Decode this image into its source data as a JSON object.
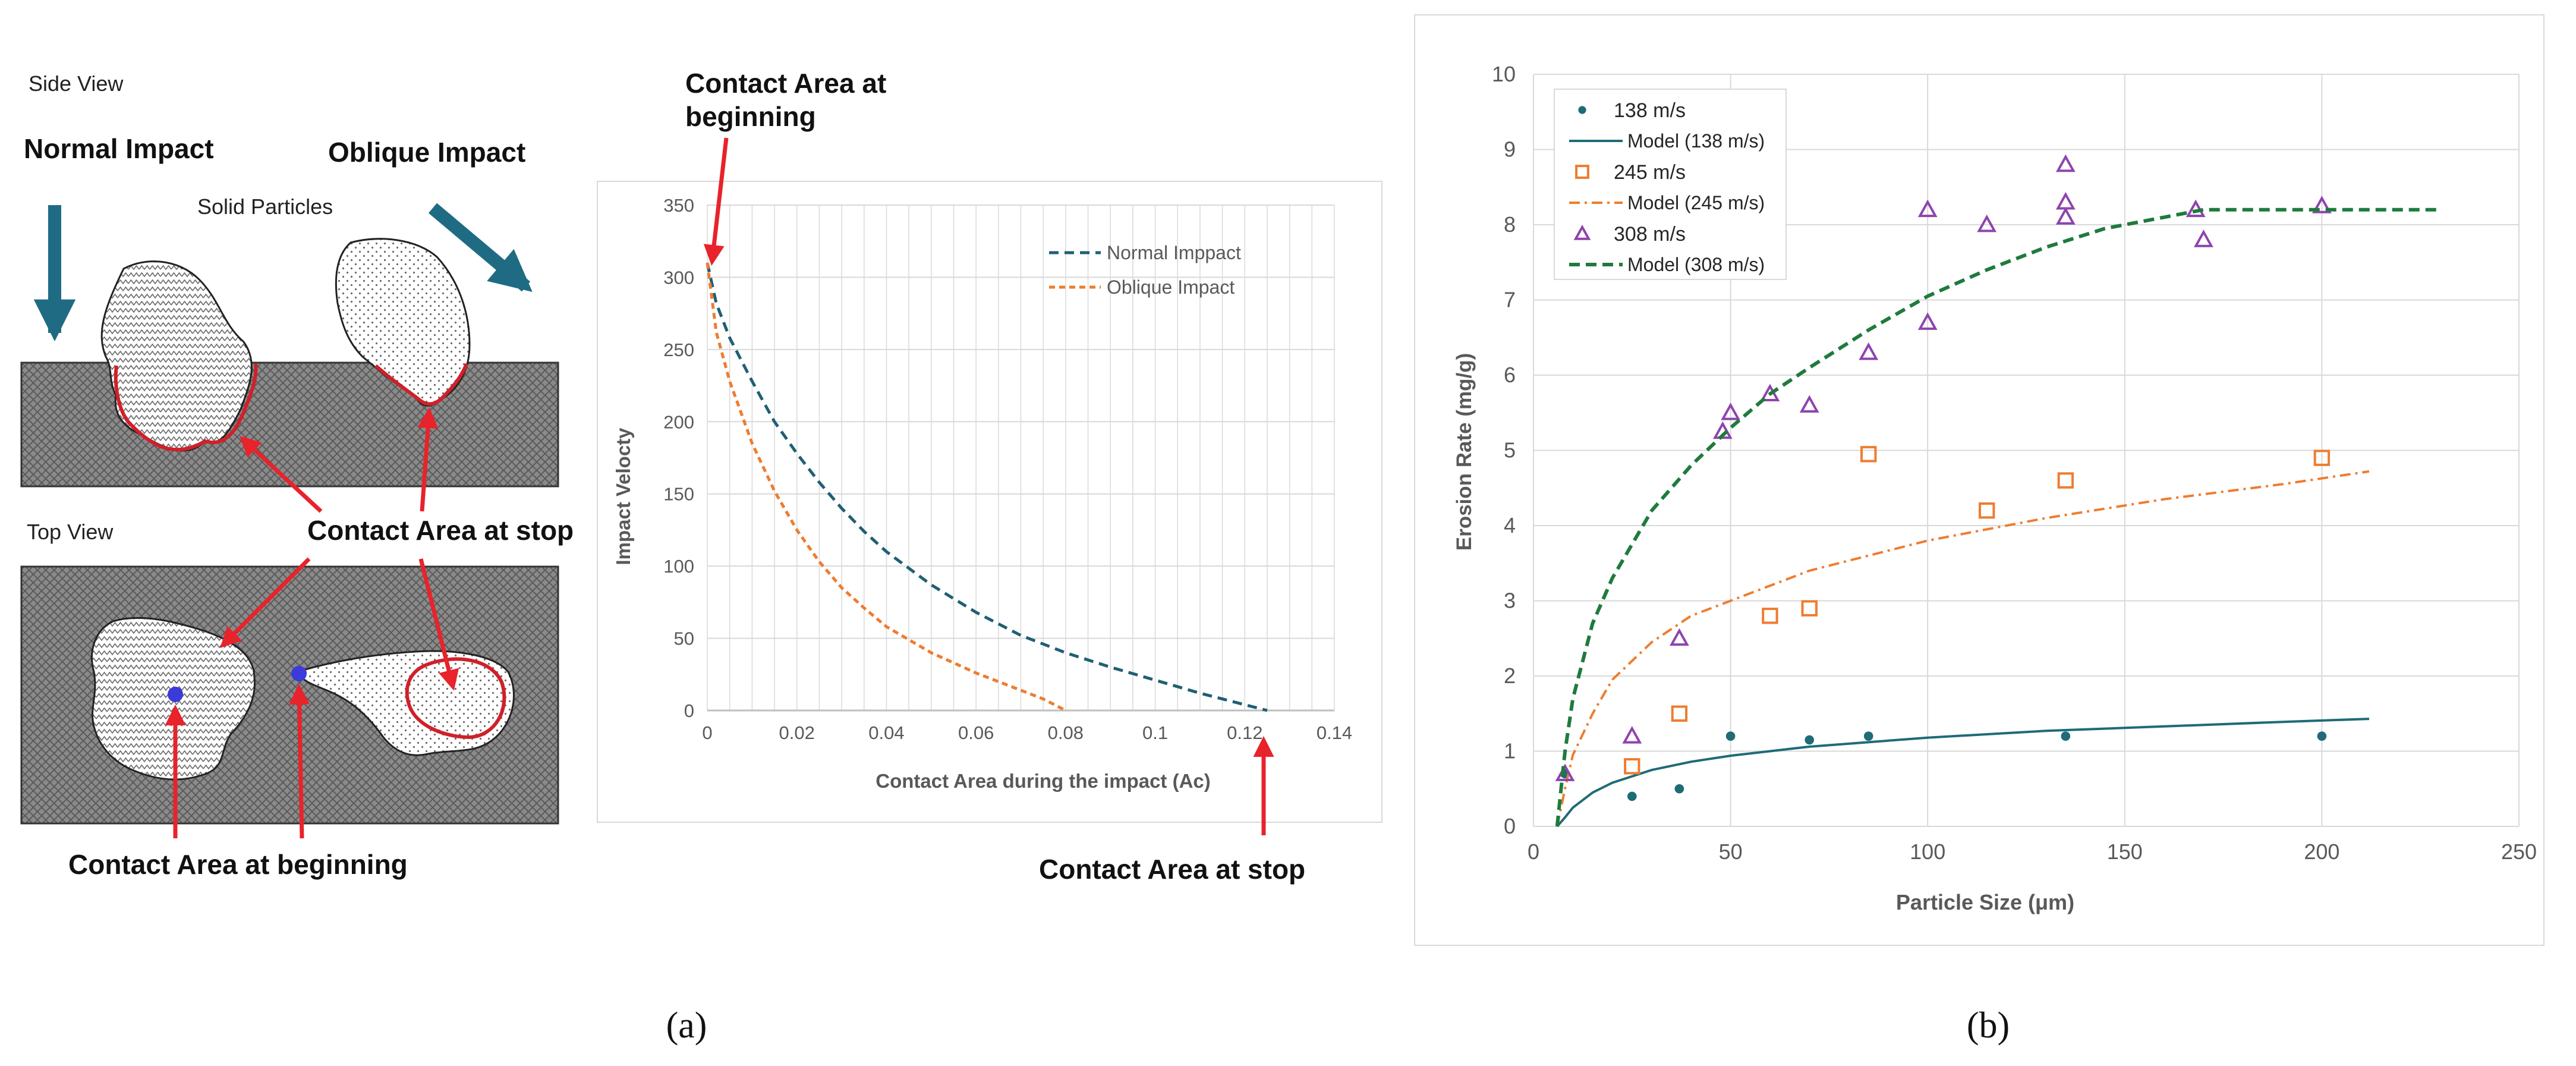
{
  "colors": {
    "normal": "#1f5f73",
    "oblique": "#ed7d31",
    "v138": "#1f6b78",
    "v245": "#ed7d31",
    "v308": "#8e44ad",
    "model308": "#1e7b3c",
    "arrow_red": "#e8232b",
    "arrow_blue": "#1f6b84",
    "grid": "#d9d9d9"
  },
  "captions": {
    "a": "(a)",
    "b": "(b)"
  },
  "diagram": {
    "side_view": "Side View",
    "normal_impact": "Normal Impact",
    "oblique_impact": "Oblique Impact",
    "solid_particles": "Solid Particles",
    "contact_area_stop": "Contact Area at stop",
    "top_view": "Top View",
    "contact_area_beginning": "Contact Area at beginning"
  },
  "chart_a_annotations": {
    "begin_line1": "Contact Area at",
    "begin_line2": "beginning",
    "stop": "Contact Area at stop"
  },
  "chart_data": [
    {
      "type": "line",
      "title": "",
      "xlabel": "Contact Area during the impact (Ac)",
      "ylabel": "Impact Velocty",
      "xlim": [
        0,
        0.14
      ],
      "ylim": [
        0,
        350
      ],
      "xticks": [
        0,
        0.02,
        0.04,
        0.06,
        0.08,
        0.1,
        0.12,
        0.14
      ],
      "xtick_labels": [
        "0",
        "0.02",
        "0.04",
        "0.06",
        "0.08",
        "0.1",
        "0.12",
        "0.14"
      ],
      "yticks": [
        0,
        50,
        100,
        150,
        200,
        250,
        300,
        350
      ],
      "ytick_labels": [
        "0",
        "50",
        "100",
        "150",
        "200",
        "250",
        "300",
        "350"
      ],
      "legend": "top-right",
      "series": [
        {
          "name": "Normal Imppact",
          "style": "dashed",
          "x": [
            0,
            0.002,
            0.005,
            0.01,
            0.015,
            0.02,
            0.025,
            0.03,
            0.035,
            0.04,
            0.05,
            0.06,
            0.07,
            0.08,
            0.09,
            0.1,
            0.11,
            0.12,
            0.125
          ],
          "y": [
            310,
            282,
            258,
            228,
            200,
            178,
            158,
            140,
            124,
            110,
            87,
            68,
            52,
            40,
            30,
            21,
            12,
            4,
            0
          ]
        },
        {
          "name": "Oblique Impact",
          "style": "dashed",
          "x": [
            0,
            0.002,
            0.005,
            0.01,
            0.015,
            0.02,
            0.025,
            0.03,
            0.035,
            0.04,
            0.05,
            0.06,
            0.07,
            0.075,
            0.08
          ],
          "y": [
            310,
            262,
            228,
            185,
            152,
            125,
            103,
            85,
            71,
            58,
            40,
            26,
            14,
            8,
            0
          ]
        }
      ]
    },
    {
      "type": "scatter",
      "title": "",
      "xlabel": "Particle Size (μm)",
      "ylabel": "Erosion Rate (mg/g)",
      "xlim": [
        0,
        250
      ],
      "ylim": [
        0,
        10
      ],
      "xticks": [
        0,
        50,
        100,
        150,
        200,
        250
      ],
      "xtick_labels": [
        "0",
        "50",
        "100",
        "150",
        "200",
        "250"
      ],
      "yticks": [
        0,
        1,
        2,
        3,
        4,
        5,
        6,
        7,
        8,
        9,
        10
      ],
      "ytick_labels": [
        "0",
        "1",
        "2",
        "3",
        "4",
        "5",
        "6",
        "7",
        "8",
        "9",
        "10"
      ],
      "legend": "top-left",
      "series": [
        {
          "name": "138 m/s",
          "kind": "points",
          "marker": "dot",
          "x": [
            8,
            25,
            37,
            50,
            70,
            85,
            135,
            200
          ],
          "y": [
            0.7,
            0.4,
            0.5,
            1.2,
            1.15,
            1.2,
            1.2,
            1.2
          ]
        },
        {
          "name": "Model (138 m/s)",
          "kind": "line",
          "style": "solid",
          "x": [
            6,
            8,
            10,
            15,
            20,
            30,
            40,
            50,
            70,
            100,
            130,
            160,
            190,
            212
          ],
          "y": [
            0,
            0.12,
            0.25,
            0.45,
            0.58,
            0.75,
            0.86,
            0.94,
            1.06,
            1.18,
            1.27,
            1.33,
            1.39,
            1.43
          ]
        },
        {
          "name": "245 m/s",
          "kind": "points",
          "marker": "square",
          "x": [
            25,
            37,
            60,
            70,
            85,
            115,
            135,
            200
          ],
          "y": [
            0.8,
            1.5,
            2.8,
            2.9,
            4.95,
            4.2,
            4.6,
            4.9
          ]
        },
        {
          "name": "Model (245 m/s)",
          "kind": "line",
          "style": "dashdot",
          "x": [
            6,
            8,
            10,
            15,
            20,
            30,
            40,
            50,
            70,
            100,
            130,
            160,
            190,
            212
          ],
          "y": [
            0,
            0.5,
            0.95,
            1.5,
            1.95,
            2.45,
            2.8,
            3.0,
            3.4,
            3.8,
            4.1,
            4.35,
            4.55,
            4.72
          ]
        },
        {
          "name": "308 m/s",
          "kind": "points",
          "marker": "triangle",
          "x": [
            8,
            25,
            37,
            48,
            50,
            60,
            70,
            85,
            100,
            100,
            115,
            135,
            135,
            135,
            168,
            170,
            200
          ],
          "y": [
            0.7,
            1.2,
            2.5,
            5.25,
            5.5,
            5.75,
            5.6,
            6.3,
            6.7,
            8.2,
            8.0,
            8.8,
            8.3,
            8.1,
            8.2,
            7.8,
            8.25
          ]
        },
        {
          "name": "Model (308 m/s)",
          "kind": "line",
          "style": "dashed",
          "x": [
            6,
            8,
            10,
            15,
            20,
            25,
            30,
            40,
            50,
            60,
            70,
            85,
            100,
            115,
            130,
            145,
            160,
            170,
            200,
            230
          ],
          "y": [
            0,
            1.0,
            1.7,
            2.7,
            3.3,
            3.75,
            4.2,
            4.8,
            5.3,
            5.75,
            6.1,
            6.6,
            7.05,
            7.4,
            7.7,
            7.95,
            8.1,
            8.2,
            8.2,
            8.2
          ]
        }
      ]
    }
  ]
}
